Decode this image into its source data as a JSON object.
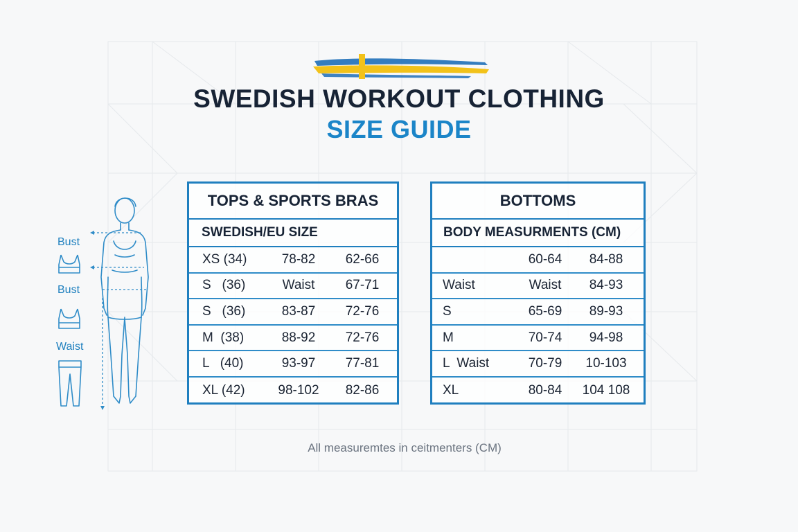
{
  "header": {
    "title": "SWEDISH WORKOUT CLOTHING",
    "subtitle": "SIZE GUIDE"
  },
  "colors": {
    "accent_blue": "#1b85c8",
    "table_border": "#1f7fbf",
    "flag_yellow": "#f2c21a",
    "flag_blue": "#1e6fb8",
    "title_dark": "#172335"
  },
  "figure": {
    "labels": [
      "Bust",
      "Bust",
      "Waist"
    ],
    "icons": [
      "sports-bra-icon",
      "sports-bra-icon",
      "leggings-icon"
    ]
  },
  "tops_table": {
    "title": "TOPS & SPORTS BRAS",
    "subheader": "SWEDISH/EU SIZE",
    "rows": [
      [
        "XS (34)",
        "78-82",
        "62-66"
      ],
      [
        "S   (36)",
        "Waist",
        "67-71"
      ],
      [
        "S   (36)",
        "83-87",
        "72-76"
      ],
      [
        "M  (38)",
        "88-92",
        "72-76"
      ],
      [
        "L   (40)",
        "93-97",
        "77-81"
      ],
      [
        "XL (42)",
        "98-102",
        "82-86"
      ]
    ]
  },
  "bottoms_table": {
    "title": "BOTTOMS",
    "subheader": "BODY MEASURMENTS (CM)",
    "rows": [
      [
        "",
        "60-64",
        "84-88"
      ],
      [
        "Waist",
        "Waist",
        "84-93"
      ],
      [
        "S",
        "65-69",
        "89-93"
      ],
      [
        "M",
        "70-74",
        "94-98"
      ],
      [
        "L  Waist",
        "70-79",
        "10-103"
      ],
      [
        "XL",
        "80-84",
        "104 108"
      ]
    ]
  },
  "footnote": "All measuremtes in ceitmenters (CM)"
}
